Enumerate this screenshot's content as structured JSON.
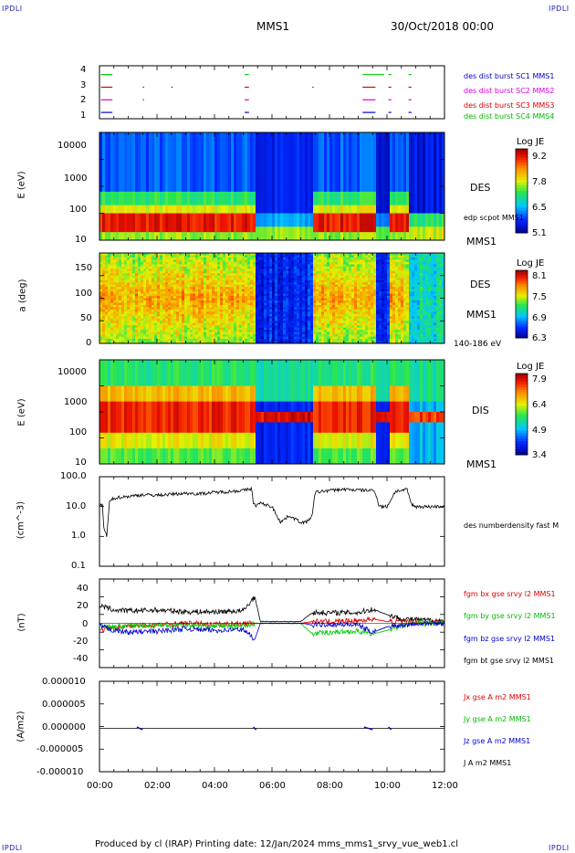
{
  "header": {
    "corner_tl": "IPDLI",
    "corner_tr": "IPDLI",
    "corner_bl": "IPDLI",
    "corner_br": "IPDLI",
    "spacecraft": "MMS1",
    "date": "30/Oct/2018 00:00"
  },
  "footer": {
    "text": "Produced by cl (IRAP)   Printing date: 12/Jan/2024   mms_mms1_srvy_vue_web1.cl"
  },
  "colors": {
    "green": "#00cc00",
    "magenta": "#dd00dd",
    "red": "#dd0000",
    "blue": "#0000cc",
    "black": "#000000"
  },
  "chart_data": [
    {
      "type": "scatter",
      "panel": "burst",
      "yticks": [
        "4",
        "3",
        "2",
        "1"
      ],
      "legend": [
        "des dist burst SC1 MMS1",
        "des dist burst SC2 MMS2",
        "des dist burst SC3 MMS3",
        "des dist burst SC4 MMS4"
      ],
      "series": [
        {
          "row": 4,
          "segments_hours": [
            [
              0.05,
              0.45
            ],
            [
              5.05,
              5.2
            ],
            [
              9.15,
              9.9
            ],
            [
              10.05,
              10.15
            ],
            [
              10.75,
              10.85
            ]
          ]
        },
        {
          "row": 3,
          "segments_hours": [
            [
              0.05,
              0.45
            ],
            [
              1.5,
              1.55
            ],
            [
              2.5,
              2.55
            ],
            [
              5.05,
              5.2
            ],
            [
              7.4,
              7.45
            ],
            [
              9.15,
              9.6
            ],
            [
              10.05,
              10.15
            ],
            [
              10.75,
              10.85
            ]
          ]
        },
        {
          "row": 2,
          "segments_hours": [
            [
              0.05,
              0.45
            ],
            [
              1.5,
              1.55
            ],
            [
              5.05,
              5.2
            ],
            [
              9.15,
              9.6
            ],
            [
              10.05,
              10.15
            ],
            [
              10.75,
              10.85
            ]
          ]
        },
        {
          "row": 1,
          "segments_hours": [
            [
              0.05,
              0.45
            ],
            [
              5.05,
              5.2
            ],
            [
              9.15,
              9.6
            ],
            [
              10.05,
              10.15
            ],
            [
              10.75,
              10.85
            ]
          ]
        }
      ]
    },
    {
      "type": "heatmap",
      "panel": "des-energy",
      "ylabel": "E (eV)",
      "yscale": "log",
      "ylim": [
        10,
        30000
      ],
      "yticks": [
        "10000",
        "1000",
        "100",
        "10"
      ],
      "right_label": "DES",
      "right_sub": "MMS1",
      "annotation": "edp scpot MMS1",
      "colorbar": {
        "title": "Log JE",
        "ticks": [
          "9.2",
          "7.8",
          "6.5",
          "5.1"
        ]
      }
    },
    {
      "type": "heatmap",
      "panel": "des-pitch",
      "ylabel": "a (deg)",
      "ylim": [
        0,
        180
      ],
      "yticks": [
        "150",
        "100",
        "50",
        "0"
      ],
      "right_label": "DES",
      "right_sub": "MMS1",
      "energy_range": "140-186 eV",
      "colorbar": {
        "title": "Log JE",
        "ticks": [
          "8.1",
          "7.5",
          "6.9",
          "6.3"
        ]
      }
    },
    {
      "type": "heatmap",
      "panel": "dis-energy",
      "ylabel": "E (eV)",
      "yscale": "log",
      "ylim": [
        10,
        30000
      ],
      "yticks": [
        "10000",
        "1000",
        "100",
        "10"
      ],
      "right_label": "DIS",
      "right_sub": "MMS1",
      "colorbar": {
        "title": "Log JE",
        "ticks": [
          "7.9",
          "6.4",
          "4.9",
          "3.4"
        ]
      }
    },
    {
      "type": "line",
      "panel": "density",
      "ylabel": "(cm^-3)",
      "yscale": "log",
      "ylim": [
        0.1,
        100
      ],
      "yticks": [
        "100.0",
        "10.0",
        "1.0",
        "0.1"
      ],
      "legend": [
        "des numberdensity fast M"
      ],
      "series": [
        {
          "name": "des numberdensity fast M",
          "x": [
            0,
            0.1,
            0.15,
            0.25,
            0.35,
            0.45,
            0.6,
            1.0,
            1.5,
            2.0,
            2.5,
            3.0,
            3.5,
            4.0,
            4.5,
            5.0,
            5.3,
            5.35,
            5.45,
            5.6,
            6.0,
            6.3,
            6.6,
            7.0,
            7.2,
            7.4,
            7.5,
            8.0,
            8.5,
            9.0,
            9.3,
            9.5,
            9.6,
            9.7,
            9.8,
            10.0,
            10.3,
            10.6,
            10.7,
            10.85,
            11.0,
            11.5,
            12.0
          ],
          "y": [
            10,
            12,
            2,
            1,
            14,
            18,
            20,
            22,
            25,
            24,
            26,
            28,
            27,
            30,
            32,
            35,
            40,
            12,
            11,
            13,
            10,
            3,
            5,
            3,
            3,
            5,
            30,
            35,
            38,
            36,
            35,
            35,
            30,
            12,
            10,
            10,
            33,
            35,
            38,
            12,
            10,
            10,
            10
          ]
        }
      ]
    },
    {
      "type": "line",
      "panel": "magnetic-field",
      "ylabel": "(nT)",
      "ylim": [
        -50,
        50
      ],
      "yticks": [
        "40",
        "20",
        "0",
        "-20",
        "-40"
      ],
      "legend": [
        "fgm bx gse srvy l2 MMS1",
        "fgm by gse srvy l2 MMS1",
        "fgm bz gse srvy l2 MMS1",
        "fgm bt gse srvy l2 MMS1"
      ],
      "series": [
        {
          "name": "fgm bx gse srvy l2 MMS1",
          "x": [
            0,
            0.5,
            1,
            2,
            3,
            4,
            5,
            5.4,
            5.6,
            6,
            7,
            7.4,
            8,
            9,
            9.5,
            10,
            10.5,
            11,
            12
          ],
          "y": [
            -8,
            -5,
            -3,
            -2,
            0,
            -1,
            0,
            0,
            0,
            0,
            0,
            2,
            2,
            3,
            5,
            2,
            2,
            1,
            1
          ]
        },
        {
          "name": "fgm by gse srvy l2 MMS1",
          "x": [
            0,
            0.5,
            1,
            2,
            3,
            4,
            5,
            5.4,
            5.6,
            6,
            7,
            7.4,
            8,
            9,
            9.5,
            10,
            10.5,
            11,
            12
          ],
          "y": [
            -2,
            -4,
            -3,
            -2,
            -2,
            -3,
            -3,
            0,
            0,
            0,
            0,
            -12,
            -10,
            -9,
            -12,
            -8,
            -3,
            0,
            0
          ]
        },
        {
          "name": "fgm bz gse srvy l2 MMS1",
          "x": [
            0,
            0.5,
            1,
            2,
            3,
            4,
            5,
            5.4,
            5.6,
            6,
            7,
            7.4,
            8,
            9,
            9.5,
            10,
            10.5,
            11,
            12
          ],
          "y": [
            -3,
            -8,
            -10,
            -9,
            -6,
            -8,
            -7,
            -18,
            0,
            0,
            0,
            -2,
            -1,
            -2,
            -10,
            -4,
            -2,
            0,
            0
          ]
        },
        {
          "name": "fgm bt gse srvy l2 MMS1",
          "x": [
            0,
            0.5,
            1,
            2,
            3,
            4,
            5,
            5.4,
            5.6,
            6,
            7,
            7.4,
            8,
            9,
            9.5,
            10,
            10.5,
            11,
            12
          ],
          "y": [
            20,
            15,
            14,
            15,
            13,
            13,
            14,
            30,
            2,
            2,
            2,
            12,
            12,
            12,
            16,
            10,
            5,
            4,
            3
          ]
        }
      ]
    },
    {
      "type": "line",
      "panel": "current",
      "ylabel": "(A/m2)",
      "ylim": [
        -1e-05,
        1e-05
      ],
      "yticks": [
        "0.000010",
        "0.000005",
        "0.000000",
        "-0.000005",
        "-0.000010"
      ],
      "legend": [
        "Jx gse A m2 MMS1",
        "Jy gse A m2 MMS1",
        "Jz gse A m2 MMS1",
        "J A m2 MMS1"
      ],
      "series": [
        {
          "name": "J A m2 MMS1",
          "x": [
            0,
            12
          ],
          "y": [
            0,
            0
          ]
        }
      ]
    }
  ],
  "xaxis": {
    "ticks": [
      "00:00",
      "02:00",
      "04:00",
      "06:00",
      "08:00",
      "10:00",
      "12:00"
    ]
  }
}
